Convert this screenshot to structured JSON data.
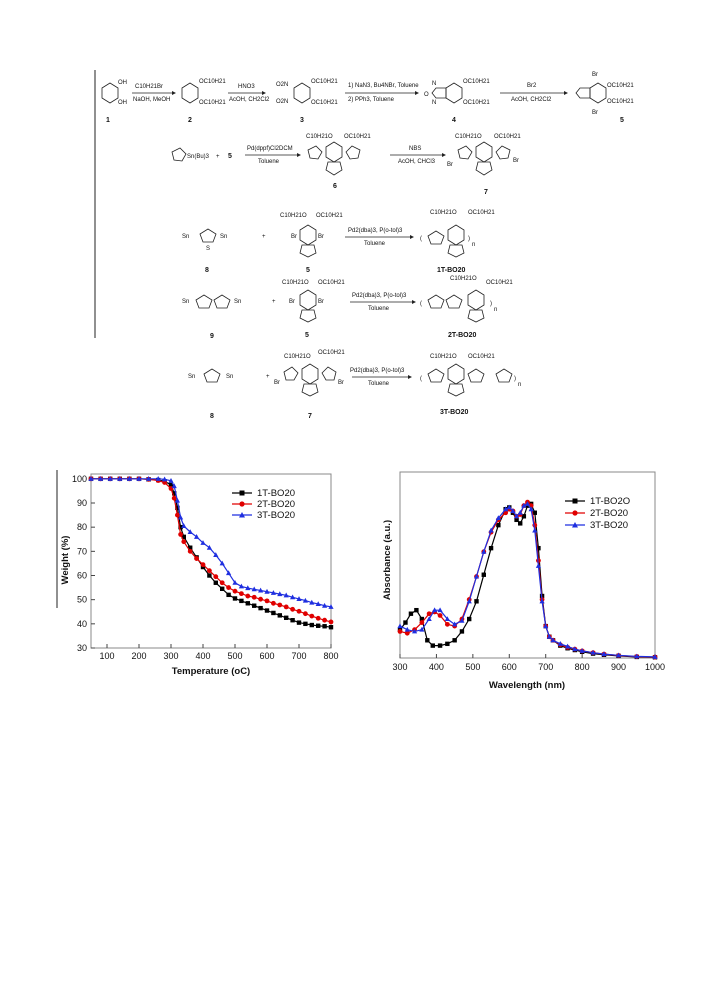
{
  "scheme": {
    "row1": {
      "compounds": [
        "1",
        "2",
        "3",
        "4",
        "5"
      ],
      "steps": [
        {
          "above": "C10H21Br",
          "below": "NaOH, MeOH"
        },
        {
          "above": "HNO3",
          "below": "AcOH, CH2Cl2"
        },
        {
          "above": "1) NaN3, Bu4NBr, Toluene",
          "below": "2) PPh3, Toluene"
        },
        {
          "above": "Br2",
          "below": "AcOH, CH2Cl2"
        }
      ],
      "substituent": "OC10H21",
      "groups": [
        "OH",
        "O2N",
        "Br",
        "N",
        "O"
      ]
    },
    "row2": {
      "reagent_left": "Sn(Bu)3",
      "plus": "+",
      "five": "5",
      "steps": [
        {
          "above": "Pd(dppf)Cl2DCM",
          "below": "Toluene"
        },
        {
          "above": "NBS",
          "below": "AcOH, CHCl3"
        }
      ],
      "compounds": [
        "6",
        "7"
      ],
      "sub_left": "C10H21O",
      "sub_right": "OC10H21"
    },
    "polymers": [
      {
        "monomer": "8",
        "partner": "5",
        "cond_above": "Pd2(dba)3, P(o-tol)3",
        "cond_below": "Toluene",
        "product": "1T-BO20"
      },
      {
        "monomer": "9",
        "partner": "5",
        "cond_above": "Pd2(dba)3, P(o-tol)3",
        "cond_below": "Toluene",
        "product": "2T-BO20"
      },
      {
        "monomer": "8",
        "partner": "7",
        "cond_above": "Pd2(dba)3, P(o-tol)3",
        "cond_below": "Toluene",
        "product": "3T-BO20"
      }
    ],
    "atoms": {
      "sn": "Sn",
      "s": "S",
      "n": "n",
      "br": "Br"
    }
  },
  "chart_data": [
    {
      "type": "line",
      "xlabel": "Temperature (oC)",
      "ylabel": "Weight (%)",
      "xlim": [
        50,
        800
      ],
      "ylim": [
        30,
        102
      ],
      "xticks": [
        100,
        200,
        300,
        400,
        500,
        600,
        700,
        800
      ],
      "yticks": [
        30,
        40,
        50,
        60,
        70,
        80,
        90,
        100
      ],
      "legend_position": "top-right",
      "series": [
        {
          "name": "1T-BO20",
          "color": "#000000",
          "marker": "square",
          "x": [
            50,
            80,
            110,
            140,
            170,
            200,
            230,
            260,
            280,
            300,
            310,
            320,
            330,
            340,
            360,
            380,
            400,
            420,
            440,
            460,
            480,
            500,
            520,
            540,
            560,
            580,
            600,
            620,
            640,
            660,
            680,
            700,
            720,
            740,
            760,
            780,
            800
          ],
          "y": [
            100,
            100,
            100,
            100,
            100,
            100,
            99.8,
            99.5,
            99,
            97.5,
            94,
            88,
            80,
            76,
            71.5,
            67.5,
            63.5,
            60,
            57,
            54.5,
            52,
            50.5,
            49.5,
            48.5,
            47.5,
            46.5,
            45.5,
            44.5,
            43.5,
            42.5,
            41.5,
            40.5,
            40,
            39.5,
            39.2,
            39,
            38.6
          ]
        },
        {
          "name": "2T-BO20",
          "color": "#e00000",
          "marker": "circle",
          "x": [
            50,
            80,
            110,
            140,
            170,
            200,
            230,
            260,
            280,
            300,
            310,
            320,
            330,
            340,
            360,
            380,
            400,
            420,
            440,
            460,
            480,
            500,
            520,
            540,
            560,
            580,
            600,
            620,
            640,
            660,
            680,
            700,
            720,
            740,
            760,
            780,
            800
          ],
          "y": [
            100,
            100,
            100,
            100,
            100,
            100,
            99.8,
            99.3,
            98.5,
            96,
            92,
            85,
            77,
            74,
            70,
            67,
            64.5,
            62,
            59.5,
            57,
            55,
            53.5,
            52.5,
            51.5,
            51,
            50.2,
            49.5,
            48.5,
            47.8,
            47,
            46,
            45.2,
            44.2,
            43.2,
            42.3,
            41.5,
            40.8
          ]
        },
        {
          "name": "3T-BO20",
          "color": "#1f2fe0",
          "marker": "triangle",
          "x": [
            50,
            80,
            110,
            140,
            170,
            200,
            230,
            260,
            280,
            300,
            310,
            320,
            330,
            340,
            360,
            380,
            400,
            420,
            440,
            460,
            480,
            500,
            520,
            540,
            560,
            580,
            600,
            620,
            640,
            660,
            680,
            700,
            720,
            740,
            760,
            780,
            800
          ],
          "y": [
            100,
            100,
            100,
            100,
            100,
            100,
            100,
            100,
            99.8,
            99.2,
            97,
            91,
            84,
            80.5,
            78,
            76,
            73.5,
            71.5,
            68.5,
            65,
            61,
            57,
            55.5,
            54.8,
            54.3,
            53.8,
            53.3,
            52.8,
            52.3,
            51.8,
            51,
            50.3,
            49.6,
            48.8,
            48.2,
            47.5,
            47
          ]
        }
      ]
    },
    {
      "type": "line",
      "xlabel": "Wavelength (nm)",
      "ylabel": "Absorbance (a.u.)",
      "xlim": [
        300,
        1000
      ],
      "ylim": [
        0,
        1.05
      ],
      "xticks": [
        300,
        400,
        500,
        600,
        700,
        800,
        900,
        1000
      ],
      "legend_position": "top-right",
      "series": [
        {
          "name": "1T-BO2O",
          "color": "#000000",
          "marker": "square",
          "x": [
            300,
            315,
            330,
            345,
            360,
            375,
            390,
            410,
            430,
            450,
            470,
            490,
            510,
            530,
            550,
            570,
            590,
            600,
            610,
            620,
            630,
            640,
            650,
            660,
            670,
            680,
            690,
            700,
            710,
            720,
            740,
            760,
            780,
            800,
            830,
            860,
            900,
            950,
            1000
          ],
          "y": [
            0.16,
            0.2,
            0.25,
            0.27,
            0.22,
            0.1,
            0.07,
            0.07,
            0.08,
            0.1,
            0.15,
            0.22,
            0.32,
            0.47,
            0.62,
            0.75,
            0.84,
            0.85,
            0.82,
            0.78,
            0.76,
            0.8,
            0.86,
            0.87,
            0.82,
            0.62,
            0.35,
            0.18,
            0.12,
            0.1,
            0.07,
            0.055,
            0.045,
            0.035,
            0.025,
            0.018,
            0.012,
            0.006,
            0.004
          ]
        },
        {
          "name": "2T-BO20",
          "color": "#e00000",
          "marker": "circle",
          "x": [
            300,
            320,
            340,
            360,
            380,
            395,
            410,
            430,
            450,
            470,
            490,
            510,
            530,
            550,
            570,
            590,
            600,
            610,
            620,
            630,
            640,
            650,
            660,
            670,
            680,
            690,
            700,
            710,
            720,
            740,
            760,
            780,
            800,
            830,
            860,
            900,
            950,
            1000
          ],
          "y": [
            0.15,
            0.14,
            0.16,
            0.2,
            0.25,
            0.26,
            0.24,
            0.19,
            0.18,
            0.22,
            0.33,
            0.46,
            0.6,
            0.71,
            0.78,
            0.82,
            0.84,
            0.83,
            0.8,
            0.81,
            0.86,
            0.88,
            0.86,
            0.75,
            0.55,
            0.33,
            0.18,
            0.12,
            0.1,
            0.075,
            0.06,
            0.05,
            0.04,
            0.03,
            0.022,
            0.014,
            0.008,
            0.005
          ]
        },
        {
          "name": "3T-BO20",
          "color": "#1f2fe0",
          "marker": "triangle",
          "x": [
            300,
            320,
            340,
            360,
            380,
            395,
            410,
            430,
            450,
            470,
            490,
            510,
            530,
            550,
            570,
            590,
            600,
            610,
            620,
            630,
            640,
            650,
            660,
            670,
            680,
            690,
            700,
            710,
            720,
            740,
            760,
            780,
            800,
            830,
            860,
            900,
            950,
            1000
          ],
          "y": [
            0.18,
            0.16,
            0.15,
            0.16,
            0.22,
            0.27,
            0.27,
            0.22,
            0.19,
            0.21,
            0.32,
            0.46,
            0.6,
            0.72,
            0.79,
            0.84,
            0.85,
            0.83,
            0.8,
            0.82,
            0.86,
            0.87,
            0.84,
            0.72,
            0.52,
            0.32,
            0.18,
            0.12,
            0.1,
            0.08,
            0.065,
            0.05,
            0.04,
            0.03,
            0.022,
            0.015,
            0.009,
            0.006
          ]
        }
      ]
    }
  ]
}
